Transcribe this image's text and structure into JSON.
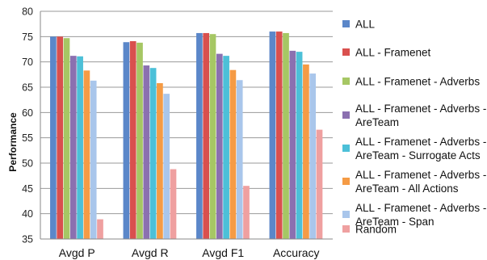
{
  "chart_data": {
    "type": "bar",
    "title": "",
    "xlabel": "",
    "ylabel": "Performance",
    "ylim": [
      35,
      80
    ],
    "yticks": [
      35,
      40,
      45,
      50,
      55,
      60,
      65,
      70,
      75,
      80
    ],
    "grid": true,
    "legend_position": "right",
    "categories": [
      "Avgd P",
      "Avgd R",
      "Avgd F1",
      "Accuracy"
    ],
    "series": [
      {
        "name": "ALL",
        "color": "#5B87C9",
        "values": [
          75.0,
          73.9,
          75.7,
          76.0
        ]
      },
      {
        "name": "ALL - Framenet",
        "color": "#D9504E",
        "values": [
          75.0,
          74.1,
          75.7,
          76.0
        ]
      },
      {
        "name": "ALL - Framenet - Adverbs",
        "color": "#A6C764",
        "values": [
          74.7,
          73.8,
          75.5,
          75.7
        ]
      },
      {
        "name": "ALL - Framenet - Adverbs - AreTeam",
        "color": "#8B70B0",
        "values": [
          71.2,
          69.3,
          71.6,
          72.2
        ]
      },
      {
        "name": "ALL - Framenet - Adverbs - AreTeam - Surrogate Acts",
        "color": "#4CC0D8",
        "values": [
          71.1,
          68.8,
          71.2,
          72.0
        ]
      },
      {
        "name": "ALL - Framenet - Adverbs - AreTeam - All Actions",
        "color": "#F59B45",
        "values": [
          68.3,
          65.8,
          68.4,
          69.5
        ]
      },
      {
        "name": "ALL - Framenet - Adverbs - AreTeam - Span",
        "color": "#A9C6EB",
        "values": [
          66.3,
          63.7,
          66.4,
          67.7
        ]
      },
      {
        "name": "Random",
        "color": "#EFA0A0",
        "values": [
          38.9,
          48.8,
          45.5,
          56.6
        ]
      }
    ]
  },
  "legend_lines": [
    [
      "ALL"
    ],
    [
      "ALL - Framenet"
    ],
    [
      "ALL - Framenet - Adverbs"
    ],
    [
      "ALL - Framenet - Adverbs -",
      "AreTeam"
    ],
    [
      "ALL - Framenet - Adverbs -",
      "AreTeam - Surrogate Acts"
    ],
    [
      "ALL - Framenet - Adverbs -",
      "AreTeam - All Actions"
    ],
    [
      "ALL - Framenet - Adverbs -",
      "AreTeam - Span"
    ],
    [
      "Random"
    ]
  ]
}
